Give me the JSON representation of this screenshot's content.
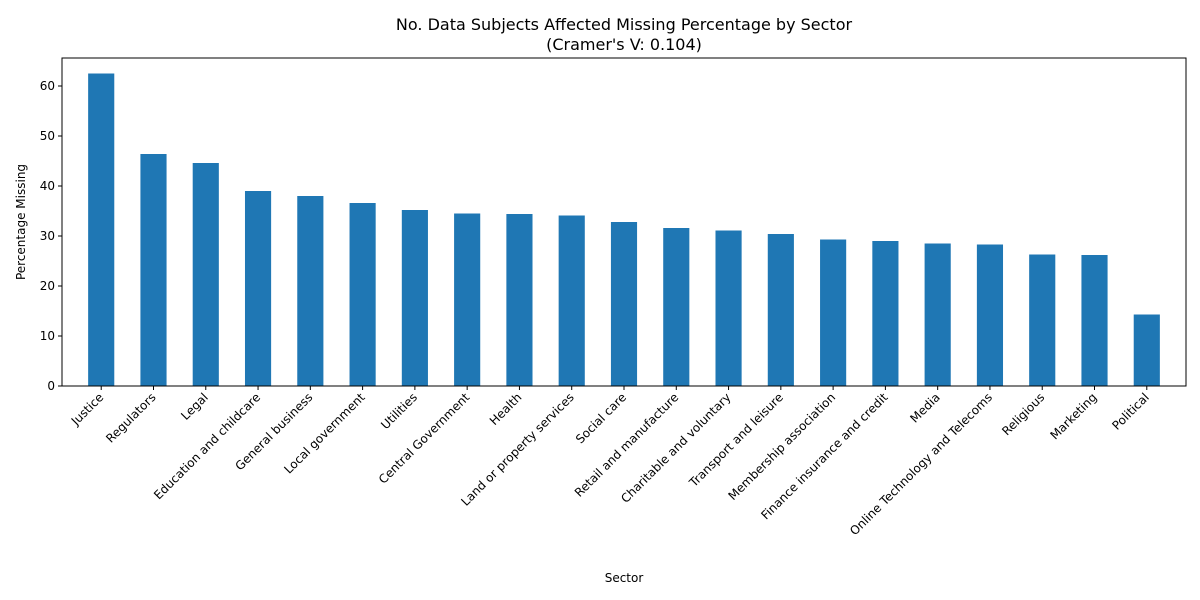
{
  "chart_data": {
    "type": "bar",
    "title": "No. Data Subjects Affected Missing Percentage by Sector",
    "subtitle": "(Cramer's V: 0.104)",
    "xlabel": "Sector",
    "ylabel": "Percentage Missing",
    "ylim": [
      0,
      65.6
    ],
    "yticks": [
      0,
      10,
      20,
      30,
      40,
      50,
      60
    ],
    "grid": false,
    "bar_color": "#1f77b4",
    "categories": [
      "Justice",
      "Regulators",
      "Legal",
      "Education and childcare",
      "General business",
      "Local government",
      "Utilities",
      "Central Government",
      "Health",
      "Land or property services",
      "Social care",
      "Retail and manufacture",
      "Charitable and voluntary",
      "Transport and leisure",
      "Membership association",
      "Finance insurance and credit",
      "Media",
      "Online Technology and Telecoms",
      "Religious",
      "Marketing",
      "Political"
    ],
    "values": [
      62.5,
      46.4,
      44.6,
      39.0,
      38.0,
      36.6,
      35.2,
      34.5,
      34.4,
      34.1,
      32.8,
      31.6,
      31.1,
      30.4,
      29.3,
      29.0,
      28.5,
      28.3,
      26.3,
      26.2,
      14.3
    ]
  }
}
